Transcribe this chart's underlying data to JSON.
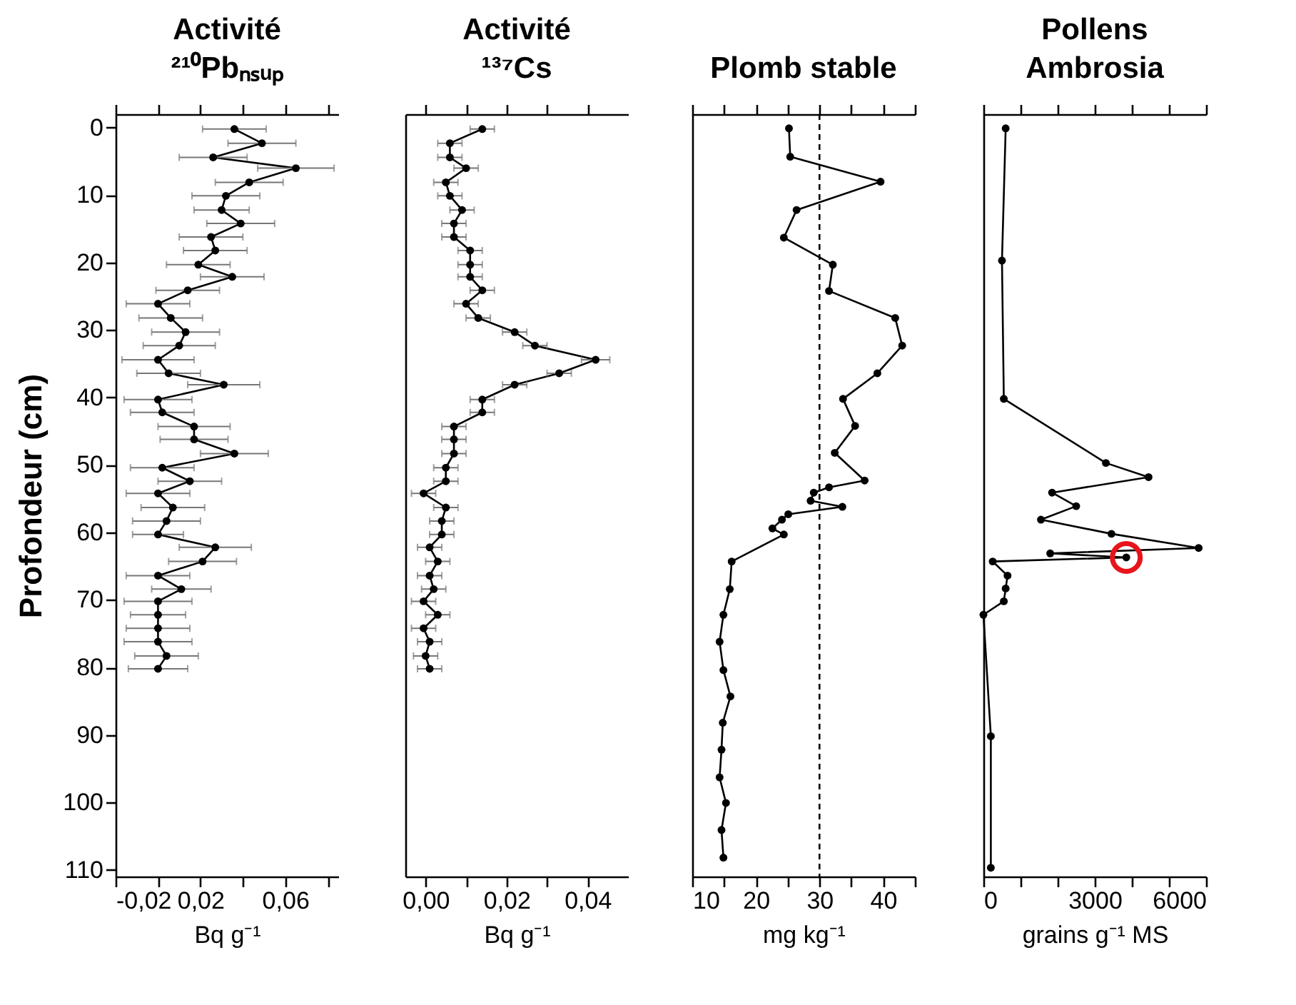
{
  "chart_data": [
    {
      "type": "line",
      "title": "Activité\n²¹⁰Pbₙₛᵤₚ",
      "xlabel": "Bq g⁻¹",
      "ylabel": "Profondeur (cm)",
      "marker": "circle",
      "grid": false,
      "xlim": [
        -0.02,
        0.085
      ],
      "xticks": [
        {
          "value": -0.02,
          "label": "-0,02"
        },
        {
          "value": 0,
          "label": null
        },
        {
          "value": 0.02,
          "label": "0,02"
        },
        {
          "value": 0.04,
          "label": null
        },
        {
          "value": 0.06,
          "label": "0,06"
        },
        {
          "value": 0.08,
          "label": null
        }
      ],
      "ylim": [
        111,
        -2
      ],
      "yticks": [
        0,
        10,
        20,
        30,
        40,
        50,
        60,
        70,
        80,
        90,
        100,
        110
      ],
      "series": [
        {
          "color": "#000000",
          "x": [
            0.036,
            0.049,
            0.026,
            0.065,
            0.043,
            0.032,
            0.03,
            0.039,
            0.025,
            0.027,
            0.019,
            0.035,
            0.014,
            0,
            0.006,
            0.013,
            0.01,
            0,
            0.005,
            0.031,
            0,
            0.002,
            0.017,
            0.017,
            0.036,
            0.002,
            0.015,
            0,
            0.007,
            0.004,
            0,
            0.027,
            0.021,
            0,
            0.011,
            0,
            0,
            0,
            0,
            0.004,
            0
          ],
          "values": [
            0.2,
            2.3,
            4.4,
            6.0,
            8.1,
            10.1,
            12.2,
            14.2,
            16.2,
            18.2,
            20.3,
            22.1,
            24.1,
            26.1,
            28.2,
            30.3,
            32.3,
            34.4,
            36.4,
            38.1,
            40.3,
            42.2,
            44.3,
            46.2,
            48.3,
            50.4,
            52.4,
            54.2,
            56.3,
            58.3,
            60.3,
            62.2,
            64.3,
            66.4,
            68.4,
            70.2,
            72.2,
            74.2,
            76.2,
            78.3,
            80.2
          ],
          "xerrors": [
            0.015,
            0.016,
            0.016,
            0.018,
            0.016,
            0.016,
            0.013,
            0.016,
            0.015,
            0.015,
            0.015,
            0.015,
            0.015,
            0.015,
            0.015,
            0.016,
            0.017,
            0.017,
            0.015,
            0.017,
            0.016,
            0.015,
            0.017,
            0.016,
            0.016,
            0.015,
            0.015,
            0.015,
            0.015,
            0.016,
            0.012,
            0.017,
            0.016,
            0.015,
            0.014,
            0.016,
            0.013,
            0.015,
            0.016,
            0.015,
            0.014
          ]
        }
      ]
    },
    {
      "type": "line",
      "title": "Activité\n¹³⁷Cs",
      "xlabel": "Bq g⁻¹",
      "marker": "circle",
      "grid": false,
      "tick_labels": "x",
      "xlim": [
        -0.005,
        0.05
      ],
      "xticks": [
        {
          "value": 0,
          "label": "0,00"
        },
        {
          "value": 0.01,
          "label": null
        },
        {
          "value": 0.02,
          "label": "0,02"
        },
        {
          "value": 0.03,
          "label": null
        },
        {
          "value": 0.04,
          "label": "0,04"
        }
      ],
      "ylim": [
        111,
        -2
      ],
      "series": [
        {
          "color": "#000000",
          "x": [
            0.014,
            0.006,
            0.006,
            0.01,
            0.005,
            0.006,
            0.009,
            0.007,
            0.007,
            0.011,
            0.011,
            0.011,
            0.014,
            0.01,
            0.013,
            0.022,
            0.027,
            0.042,
            0.033,
            0.022,
            0.014,
            0.014,
            0.007,
            0.007,
            0.007,
            0.005,
            0.005,
            -0.0005,
            0.005,
            0.004,
            0.004,
            0.001,
            0.003,
            0.001,
            0.002,
            -0.0005,
            0.003,
            -0.0005,
            0.001,
            0,
            0.001
          ],
          "values": [
            0.2,
            2.3,
            4.4,
            6.0,
            8.1,
            10.1,
            12.2,
            14.2,
            16.2,
            18.2,
            20.3,
            22.1,
            24.1,
            26.1,
            28.2,
            30.3,
            32.3,
            34.4,
            36.4,
            38.1,
            40.3,
            42.2,
            44.3,
            46.2,
            48.3,
            50.4,
            52.4,
            54.2,
            56.3,
            58.3,
            60.3,
            62.2,
            64.3,
            66.4,
            68.4,
            70.2,
            72.2,
            74.2,
            76.2,
            78.3,
            80.2
          ],
          "xerrors": [
            0.003,
            0.003,
            0.003,
            0.003,
            0.003,
            0.003,
            0.003,
            0.003,
            0.003,
            0.003,
            0.003,
            0.003,
            0.003,
            0.003,
            0.003,
            0.003,
            0.003,
            0.0035,
            0.003,
            0.003,
            0.003,
            0.003,
            0.003,
            0.003,
            0.003,
            0.003,
            0.003,
            0.003,
            0.003,
            0.003,
            0.003,
            0.003,
            0.003,
            0.003,
            0.003,
            0.003,
            0.003,
            0.003,
            0.003,
            0.003,
            0.003
          ]
        }
      ]
    },
    {
      "type": "line",
      "title": "Plomb stable",
      "xlabel": "mg kg⁻¹",
      "marker": "circle",
      "grid": false,
      "tick_labels": "x",
      "xlim": [
        10,
        45
      ],
      "xticks": [
        10,
        {
          "value": 15,
          "label": null
        },
        20,
        {
          "value": 25,
          "label": null
        },
        30,
        {
          "value": 35,
          "label": null
        },
        40,
        {
          "value": 45,
          "label": null
        }
      ],
      "ylim": [
        111,
        -2
      ],
      "ref_lines": [
        {
          "axis": "x",
          "value": 30,
          "line_style": "dashed",
          "color": "#000000"
        }
      ],
      "series": [
        {
          "color": "#000000",
          "x": [
            25.2,
            25.4,
            39.6,
            26.4,
            24.4,
            32.1,
            31.5,
            41.9,
            43.0,
            39.1,
            33.7,
            35.6,
            32.4,
            37.1,
            31.5,
            29.1,
            28.6,
            33.6,
            25.1,
            24.1,
            22.6,
            24.4,
            16.2,
            15.9,
            14.9,
            14.3,
            14.9,
            16.0,
            14.8,
            14.6,
            14.3,
            15.3,
            14.6,
            14.9
          ],
          "values": [
            0.1,
            4.3,
            8.0,
            12.2,
            16.3,
            20.3,
            24.2,
            28.2,
            32.3,
            36.4,
            40.2,
            44.2,
            48.2,
            52.3,
            53.3,
            54.1,
            55.3,
            56.2,
            57.3,
            58.1,
            59.4,
            60.3,
            64.3,
            68.4,
            72.2,
            76.2,
            80.4,
            84.3,
            88.2,
            92.2,
            96.3,
            100.1,
            104.1,
            108.2
          ]
        }
      ]
    },
    {
      "type": "line",
      "title": "Pollens\nAmbrosia",
      "xlabel": "grains g⁻¹ MS",
      "marker": "circle",
      "grid": false,
      "tick_labels": "x",
      "xlim": [
        0,
        6000
      ],
      "xticks": [
        0,
        {
          "value": 1000,
          "label": null
        },
        {
          "value": 2000,
          "label": null
        },
        3000,
        {
          "value": 4000,
          "label": null
        },
        {
          "value": 5000,
          "label": null
        },
        6000
      ],
      "ylim": [
        111,
        -2
      ],
      "series": [
        {
          "color": "#000000",
          "x": [
            600,
            500,
            550,
            3300,
            4450,
            1850,
            2500,
            1550,
            3450,
            5800,
            1800,
            3850,
            250,
            650,
            600,
            550,
            0,
            200,
            200
          ],
          "values": [
            0.1,
            19.7,
            40.2,
            49.7,
            51.8,
            54.1,
            56.1,
            58.1,
            60.2,
            62.3,
            63.1,
            63.7,
            64.3,
            66.4,
            68.3,
            70.2,
            72.2,
            90.2,
            109.7
          ]
        },
        {
          "type": "scatter",
          "color": "#e8141b",
          "x": [
            3850
          ],
          "values": [
            63.7
          ]
        }
      ]
    }
  ]
}
